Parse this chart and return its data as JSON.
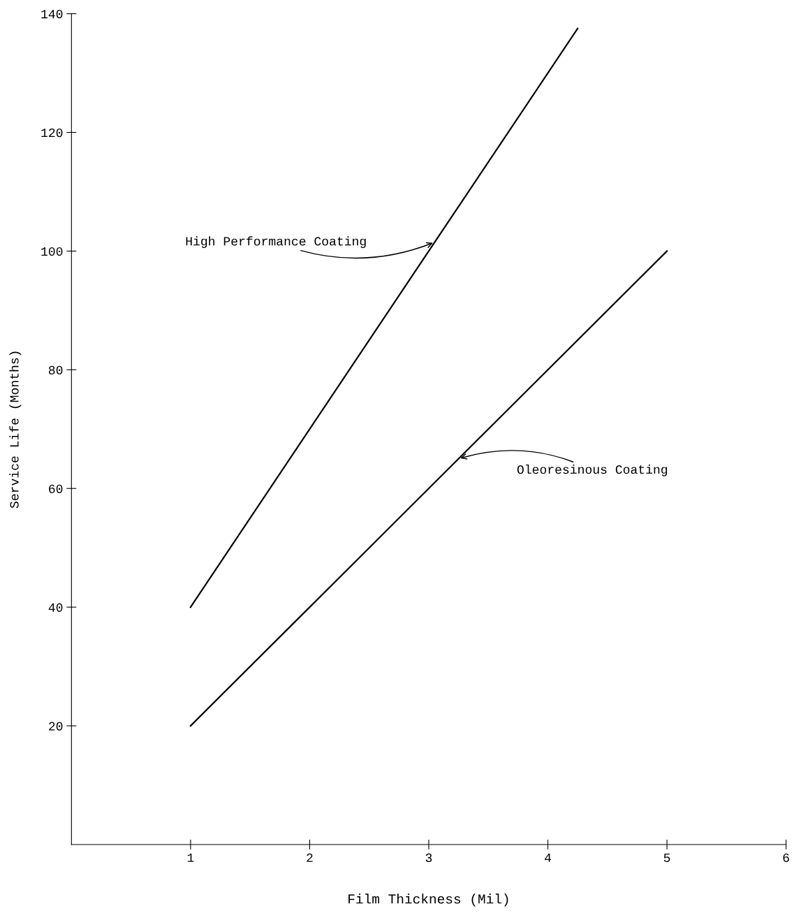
{
  "chart_data": {
    "type": "line",
    "xlabel": "Film Thickness (Mil)",
    "ylabel": "Service Life (Months)",
    "series": [
      {
        "color": "#000000",
        "x": [
          1,
          3,
          4.25
        ],
        "values": [
          40,
          100,
          137.5
        ]
      },
      {
        "color": "#000000",
        "x": [
          1,
          3,
          5
        ],
        "values": [
          20,
          60,
          100
        ]
      }
    ],
    "annotations": [
      {
        "text": "High Performance Coating",
        "x": 3.05,
        "y": 101.5
      },
      {
        "text": "Oleoresinous Coating",
        "x": 3.25,
        "y": 65
      }
    ],
    "xlim": [
      0,
      6
    ],
    "ylim": [
      0,
      140
    ],
    "xticks": [
      1,
      2,
      3,
      4,
      5,
      6
    ],
    "yticks": [
      20,
      40,
      60,
      80,
      100,
      120,
      140
    ],
    "grid": false,
    "legend": false,
    "marker": "none",
    "line_style": "solid"
  }
}
